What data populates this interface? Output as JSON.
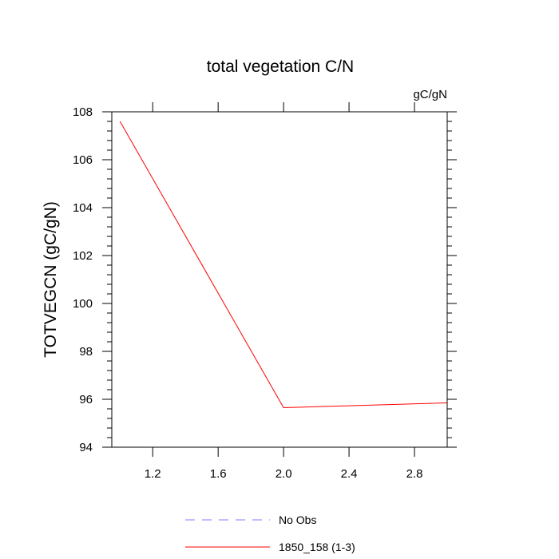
{
  "chart_data": {
    "type": "line",
    "title": "total vegetation C/N",
    "units_label": "gC/gN",
    "ylabel": "TOTVEGCN  (gC/gN)",
    "xlabel": "",
    "xlim": [
      0.95,
      3.0
    ],
    "ylim": [
      94,
      108
    ],
    "x_ticks": [
      1.2,
      1.6,
      2.0,
      2.4,
      2.8
    ],
    "x_tick_labels": [
      "1.2",
      "1.6",
      "2.0",
      "2.4",
      "2.8"
    ],
    "y_ticks": [
      94,
      96,
      98,
      100,
      102,
      104,
      106,
      108
    ],
    "y_tick_labels": [
      "94",
      "96",
      "98",
      "100",
      "102",
      "104",
      "106",
      "108"
    ],
    "grid": false,
    "legend_position": "bottom",
    "series": [
      {
        "name": "No Obs",
        "color": "#7f7fff",
        "dash": "dashed",
        "x": [],
        "y": []
      },
      {
        "name": "1850_158 (1-3)",
        "color": "#ff0000",
        "dash": "solid",
        "x": [
          1.0,
          2.0,
          3.0
        ],
        "y": [
          107.6,
          95.65,
          95.85
        ]
      }
    ]
  }
}
